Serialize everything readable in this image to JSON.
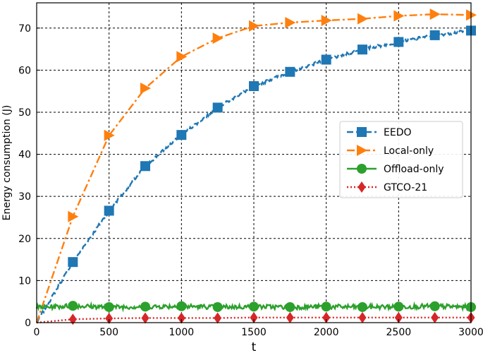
{
  "chart_data": {
    "type": "line",
    "title": "",
    "xlabel": "t",
    "ylabel": "Energy consumption (J)",
    "xlim": [
      0,
      3000
    ],
    "ylim": [
      0,
      76
    ],
    "xticks": [
      0,
      500,
      1000,
      1500,
      2000,
      2500,
      3000
    ],
    "yticks": [
      0,
      10,
      20,
      30,
      40,
      50,
      60,
      70
    ],
    "xtick_labels": [
      "0",
      "500",
      "1000",
      "1500",
      "2000",
      "2500",
      "3000"
    ],
    "ytick_labels": [
      "0",
      "10",
      "20",
      "30",
      "40",
      "50",
      "60",
      "70"
    ],
    "grid": true,
    "legend_position": "center-right",
    "series": [
      {
        "name": "EEDO",
        "color": "#1f77b4",
        "linestyle": "dashed",
        "marker": "square",
        "x": [
          0,
          250,
          500,
          750,
          1000,
          1250,
          1500,
          1750,
          2000,
          2250,
          2500,
          2750,
          3000
        ],
        "y": [
          0,
          14.4,
          26.6,
          37.2,
          44.6,
          51.1,
          56.2,
          59.6,
          62.5,
          64.9,
          66.7,
          68.3,
          69.4
        ]
      },
      {
        "name": "Local-only",
        "color": "#ff7f0e",
        "linestyle": "dashdot",
        "marker": "triangle-right",
        "x": [
          0,
          250,
          500,
          750,
          1000,
          1250,
          1500,
          1750,
          2000,
          2250,
          2500,
          2750,
          3000
        ],
        "y": [
          0,
          25.2,
          44.5,
          55.7,
          63.2,
          67.6,
          70.5,
          71.3,
          71.8,
          72.2,
          72.9,
          73.3,
          73.1
        ]
      },
      {
        "name": "Offload-only",
        "color": "#2ca02c",
        "linestyle": "solid",
        "marker": "circle",
        "x": [
          0,
          250,
          500,
          750,
          1000,
          1250,
          1500,
          1750,
          2000,
          2250,
          2500,
          2750,
          3000
        ],
        "y": [
          3.6,
          4.0,
          3.7,
          3.8,
          3.9,
          3.7,
          3.8,
          3.7,
          3.8,
          3.7,
          3.8,
          3.9,
          3.7
        ]
      },
      {
        "name": "GTCO-21",
        "color": "#d62728",
        "linestyle": "dotted",
        "marker": "diamond",
        "x": [
          0,
          250,
          500,
          750,
          1000,
          1250,
          1500,
          1750,
          2000,
          2250,
          2500,
          2750,
          3000
        ],
        "y": [
          0,
          0.8,
          1.0,
          1.1,
          1.1,
          1.1,
          1.2,
          1.2,
          1.2,
          1.2,
          1.2,
          1.2,
          1.2
        ]
      }
    ]
  }
}
